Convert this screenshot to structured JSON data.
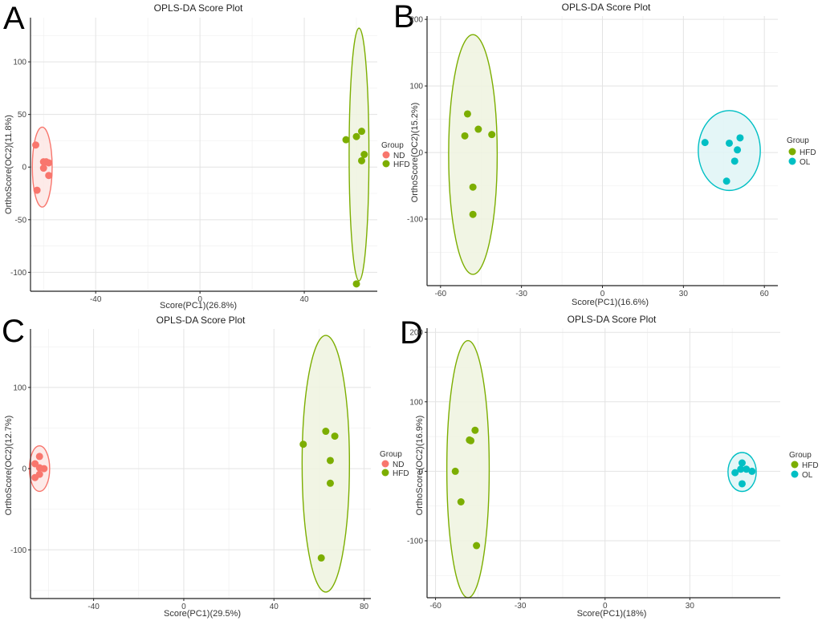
{
  "chart_data": [
    {
      "panel": "A",
      "type": "scatter",
      "title": "OPLS-DA Score Plot",
      "xlabel": "Score(PC1)(26.8%)",
      "ylabel": "OrthoScore(OC2)(11.8%)",
      "xlim": [
        -65,
        68
      ],
      "ylim": [
        -118,
        142
      ],
      "xticks": [
        -40,
        0,
        40
      ],
      "yticks": [
        -100,
        -50,
        0,
        50,
        100
      ],
      "legend_title": "Group",
      "series": [
        {
          "name": "ND",
          "color": "#F8766D",
          "fill": "#FDE6E4",
          "points": [
            [
              -63,
              21
            ],
            [
              -62.5,
              -22
            ],
            [
              -60,
              5
            ],
            [
              -60,
              -1
            ],
            [
              -59,
              5
            ],
            [
              -58,
              4
            ],
            [
              -58,
              -8
            ]
          ],
          "ellipse": {
            "cx": -60.5,
            "cy": 0,
            "rx": 3.8,
            "ry": 38
          }
        },
        {
          "name": "HFD",
          "color": "#7CAE00",
          "fill": "#EEF3DF",
          "points": [
            [
              56,
              26
            ],
            [
              60,
              29
            ],
            [
              62,
              34
            ],
            [
              62,
              6
            ],
            [
              63,
              12
            ],
            [
              60,
              -111
            ]
          ],
          "ellipse": {
            "cx": 61,
            "cy": 12,
            "rx": 3.8,
            "ry": 120
          }
        }
      ]
    },
    {
      "panel": "B",
      "type": "scatter",
      "title": "OPLS-DA Score Plot",
      "xlabel": "Score(PC1)(16.6%)",
      "ylabel": "OrthoScore(OC2)(15.2%)",
      "xlim": [
        -65,
        65
      ],
      "ylim": [
        -200,
        205
      ],
      "xticks": [
        -60,
        -30,
        0,
        30,
        60
      ],
      "yticks": [
        -100,
        0,
        100,
        200
      ],
      "legend_title": "Group",
      "series": [
        {
          "name": "HFD",
          "color": "#7CAE00",
          "fill": "#EEF3DF",
          "points": [
            [
              -50,
              58
            ],
            [
              -51,
              25
            ],
            [
              -46,
              35
            ],
            [
              -41,
              27
            ],
            [
              -48,
              -52
            ],
            [
              -48,
              -93
            ]
          ],
          "ellipse": {
            "cx": -48,
            "cy": -3,
            "rx": 9,
            "ry": 180
          }
        },
        {
          "name": "OL",
          "color": "#00BFC4",
          "fill": "#DFF5F6",
          "points": [
            [
              38,
              15
            ],
            [
              47,
              14
            ],
            [
              51,
              22
            ],
            [
              50,
              4
            ],
            [
              49,
              -13
            ],
            [
              46,
              -43
            ]
          ],
          "ellipse": {
            "cx": 47,
            "cy": 3,
            "rx": 11.5,
            "ry": 60
          }
        }
      ]
    },
    {
      "panel": "C",
      "type": "scatter",
      "title": "OPLS-DA Score Plot",
      "xlabel": "Score(PC1)(29.5%)",
      "ylabel": "OrthoScore(OC2)(12.7%)",
      "xlim": [
        -68,
        83
      ],
      "ylim": [
        -160,
        172
      ],
      "xticks": [
        -40,
        0,
        40,
        80
      ],
      "yticks": [
        -100,
        0,
        100
      ],
      "legend_title": "Group",
      "series": [
        {
          "name": "ND",
          "color": "#F8766D",
          "fill": "#FDE6E4",
          "points": [
            [
              -64,
              15
            ],
            [
              -66,
              6
            ],
            [
              -64,
              1
            ],
            [
              -62,
              0
            ],
            [
              -64,
              -7
            ],
            [
              -66,
              -11
            ]
          ],
          "ellipse": {
            "cx": -64,
            "cy": 0,
            "rx": 4.5,
            "ry": 28
          }
        },
        {
          "name": "HFD",
          "color": "#7CAE00",
          "fill": "#EEF3DF",
          "points": [
            [
              53,
              30
            ],
            [
              63,
              46
            ],
            [
              67,
              40
            ],
            [
              65,
              10
            ],
            [
              65,
              -18
            ],
            [
              61,
              -110
            ]
          ],
          "ellipse": {
            "cx": 63,
            "cy": 6,
            "rx": 10.5,
            "ry": 158
          }
        }
      ]
    },
    {
      "panel": "D",
      "type": "scatter",
      "title": "OPLS-DA Score Plot",
      "xlabel": "Score(PC1)(18%)",
      "ylabel": "OrthoScore(OC2)(16.9%)",
      "xlim": [
        -63,
        62
      ],
      "ylim": [
        -182,
        206
      ],
      "xticks": [
        -60,
        -30,
        0,
        30
      ],
      "yticks": [
        -100,
        0,
        100,
        200
      ],
      "legend_title": "Group",
      "series": [
        {
          "name": "HFD",
          "color": "#7CAE00",
          "fill": "#EEF3DF",
          "points": [
            [
              -46,
              59
            ],
            [
              -48,
              45
            ],
            [
              -47.5,
              44
            ],
            [
              -53,
              0
            ],
            [
              -51,
              -44
            ],
            [
              -45.5,
              -107
            ]
          ],
          "ellipse": {
            "cx": -48.5,
            "cy": 3,
            "rx": 7.5,
            "ry": 185
          }
        },
        {
          "name": "OL",
          "color": "#00BFC4",
          "fill": "#DFF5F6",
          "points": [
            [
              48.5,
              12
            ],
            [
              46,
              -2
            ],
            [
              48,
              3
            ],
            [
              50,
              3
            ],
            [
              52,
              0
            ],
            [
              48.5,
              -18
            ]
          ],
          "ellipse": {
            "cx": 48.5,
            "cy": -1,
            "rx": 5,
            "ry": 28
          }
        }
      ]
    }
  ]
}
